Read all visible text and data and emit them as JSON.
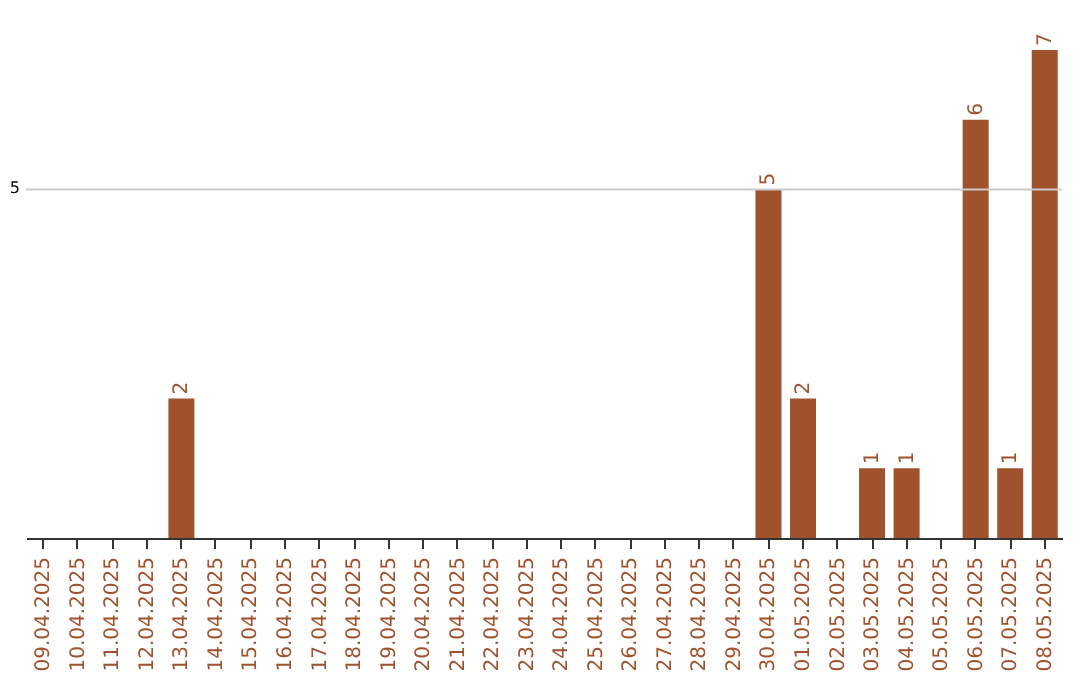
{
  "chart_data": {
    "type": "bar",
    "categories": [
      "09.04.2025",
      "10.04.2025",
      "11.04.2025",
      "12.04.2025",
      "13.04.2025",
      "14.04.2025",
      "15.04.2025",
      "16.04.2025",
      "17.04.2025",
      "18.04.2025",
      "19.04.2025",
      "20.04.2025",
      "21.04.2025",
      "22.04.2025",
      "23.04.2025",
      "24.04.2025",
      "25.04.2025",
      "26.04.2025",
      "27.04.2025",
      "28.04.2025",
      "29.04.2025",
      "30.04.2025",
      "01.05.2025",
      "02.05.2025",
      "03.05.2025",
      "04.05.2025",
      "05.05.2025",
      "06.05.2025",
      "07.05.2025",
      "08.05.2025"
    ],
    "values": [
      0,
      0,
      0,
      0,
      2,
      0,
      0,
      0,
      0,
      0,
      0,
      0,
      0,
      0,
      0,
      0,
      0,
      0,
      0,
      0,
      0,
      5,
      2,
      0,
      1,
      1,
      0,
      6,
      1,
      7
    ],
    "value_labels": [
      null,
      null,
      null,
      null,
      "2",
      null,
      null,
      null,
      null,
      null,
      null,
      null,
      null,
      null,
      null,
      null,
      null,
      null,
      null,
      null,
      null,
      "5",
      "2",
      null,
      "1",
      "1",
      null,
      "6",
      "1",
      "7"
    ],
    "color": "#a0522d",
    "ref_lines": [
      {
        "axis": "y",
        "value": 5,
        "label": "5",
        "color": "#cccccc"
      }
    ]
  }
}
